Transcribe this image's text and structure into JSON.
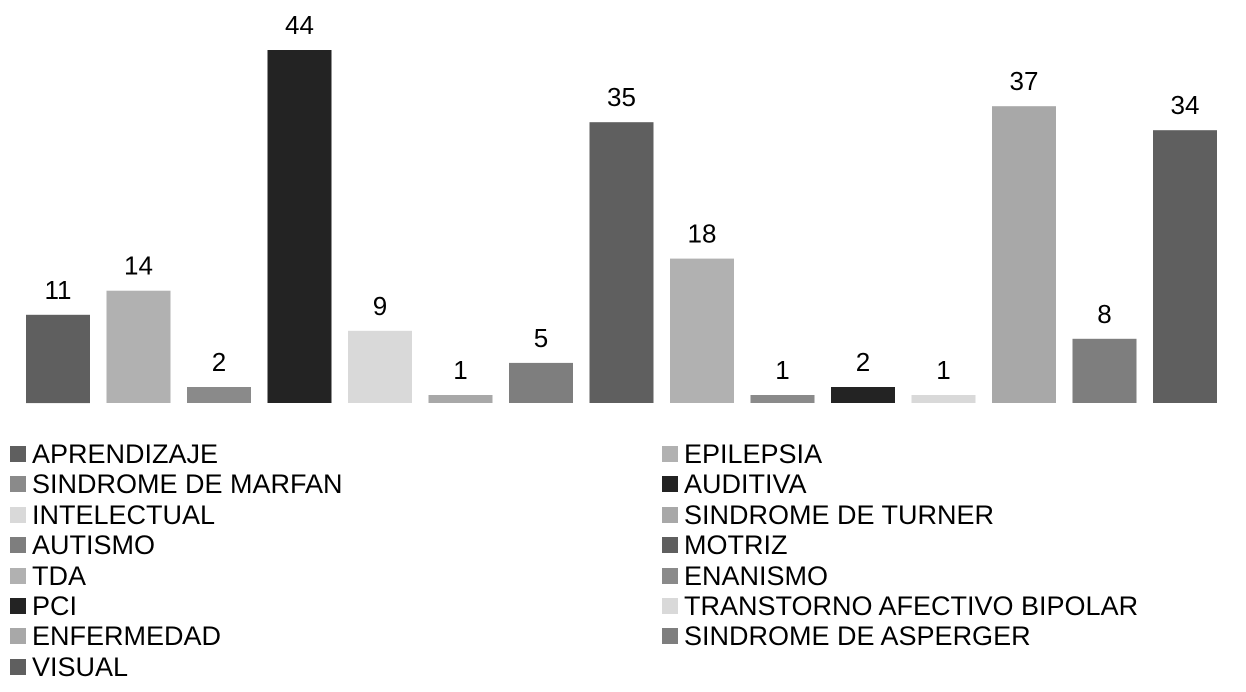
{
  "chart_data": {
    "type": "bar",
    "title": "",
    "xlabel": "",
    "ylabel": "",
    "ylim": [
      0,
      44
    ],
    "grid": false,
    "legend_position": "bottom",
    "categories": [
      "APRENDIZAJE",
      "EPILEPSIA",
      "SINDROME DE MARFAN",
      "AUDITIVA",
      "INTELECTUAL",
      "SINDROME DE TURNER",
      "AUTISMO",
      "MOTRIZ",
      "TDA",
      "ENANISMO",
      "PCI",
      "TRANSTORNO  AFECTIVO BIPOLAR",
      "ENFERMEDAD",
      "SINDROME DE ASPERGER",
      "VISUAL"
    ],
    "values": [
      11,
      14,
      2,
      44,
      9,
      1,
      5,
      35,
      18,
      1,
      2,
      1,
      37,
      8,
      34
    ],
    "data_labels": [
      "11",
      "14",
      "2",
      "44",
      "9",
      "1",
      "5",
      "35",
      "18",
      "1",
      "2",
      "1",
      "37",
      "8",
      "34"
    ],
    "colors": [
      "#5f5f5f",
      "#b1b1b1",
      "#8a8a8a",
      "#232323",
      "#d9d9d9",
      "#a8a8a8",
      "#7e7e7e",
      "#5f5f5f",
      "#b1b1b1",
      "#8a8a8a",
      "#232323",
      "#d9d9d9",
      "#a8a8a8",
      "#7e7e7e",
      "#5f5f5f"
    ]
  },
  "legend": {
    "items": [
      {
        "label": "APRENDIZAJE",
        "color": "#5f5f5f"
      },
      {
        "label": "EPILEPSIA",
        "color": "#b1b1b1"
      },
      {
        "label": "SINDROME DE MARFAN",
        "color": "#8a8a8a"
      },
      {
        "label": "AUDITIVA",
        "color": "#232323"
      },
      {
        "label": "INTELECTUAL",
        "color": "#d9d9d9"
      },
      {
        "label": "SINDROME DE TURNER",
        "color": "#a8a8a8"
      },
      {
        "label": "AUTISMO",
        "color": "#7e7e7e"
      },
      {
        "label": "MOTRIZ",
        "color": "#5f5f5f"
      },
      {
        "label": "TDA",
        "color": "#b1b1b1"
      },
      {
        "label": "ENANISMO",
        "color": "#8a8a8a"
      },
      {
        "label": "PCI",
        "color": "#232323"
      },
      {
        "label": "TRANSTORNO  AFECTIVO BIPOLAR",
        "color": "#d9d9d9"
      },
      {
        "label": "ENFERMEDAD",
        "color": "#a8a8a8"
      },
      {
        "label": "SINDROME DE ASPERGER",
        "color": "#7e7e7e"
      },
      {
        "label": "VISUAL",
        "color": "#5f5f5f"
      }
    ]
  }
}
